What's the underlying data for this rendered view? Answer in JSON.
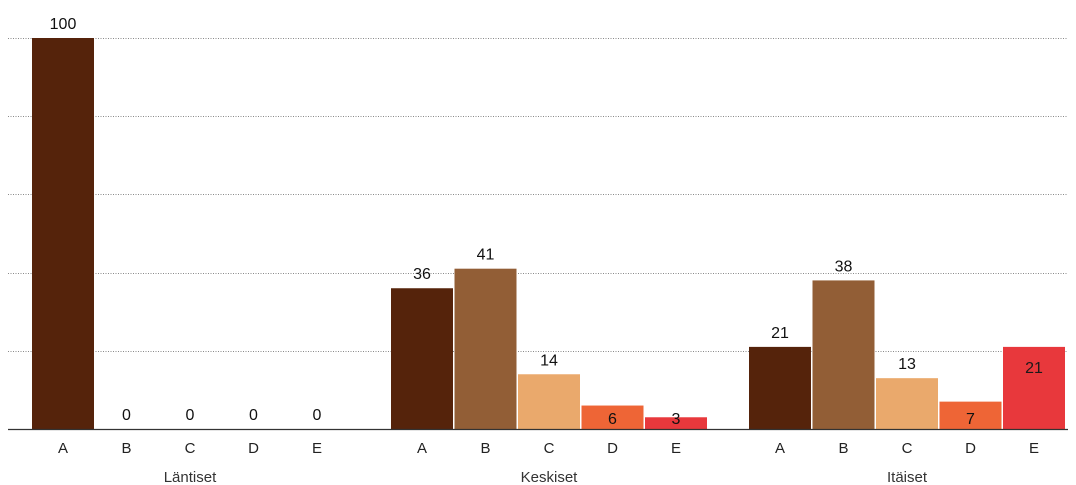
{
  "chart_data": {
    "type": "bar",
    "title": "",
    "xlabel": "",
    "ylabel": "",
    "ylim": [
      0,
      100
    ],
    "grid": true,
    "legend": "none",
    "groups": [
      {
        "name": "Läntiset",
        "categories": [
          "A",
          "B",
          "C",
          "D",
          "E"
        ],
        "values": [
          100,
          0,
          0,
          0,
          0
        ]
      },
      {
        "name": "Keskiset",
        "categories": [
          "A",
          "B",
          "C",
          "D",
          "E"
        ],
        "values": [
          36,
          41,
          14,
          6,
          3
        ]
      },
      {
        "name": "Itäiset",
        "categories": [
          "A",
          "B",
          "C",
          "D",
          "E"
        ],
        "values": [
          21,
          38,
          13,
          7,
          21
        ]
      }
    ],
    "category_colors": {
      "A": "#55230b",
      "B": "#925e36",
      "C": "#eaa96c",
      "D": "#ee6536",
      "E": "#e8383c"
    }
  }
}
